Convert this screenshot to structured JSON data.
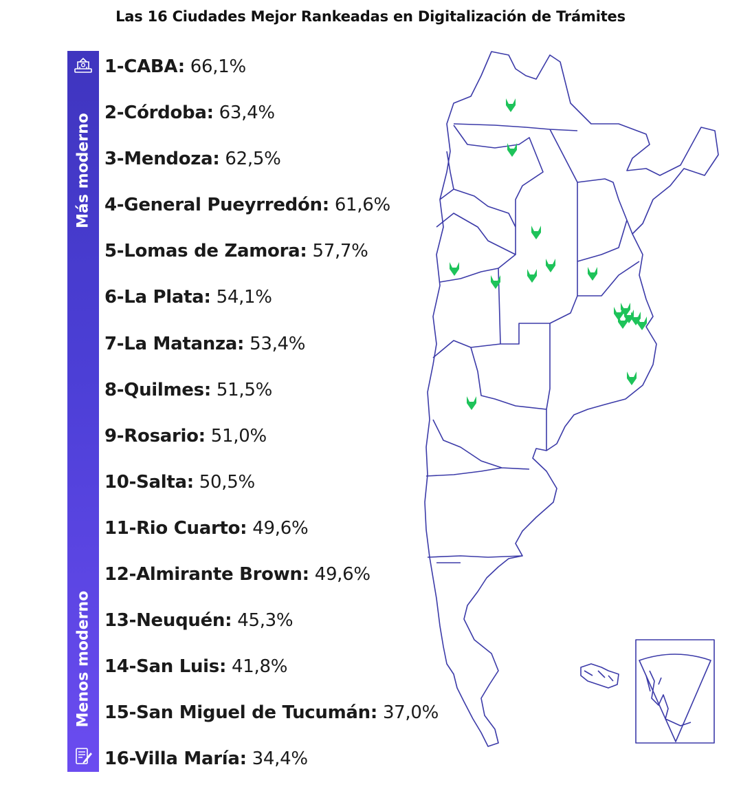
{
  "title": "Las 16 Ciudades Mejor Rankeadas en Digitalización de Trámites",
  "scale": {
    "top_label": "Más moderno",
    "bottom_label": "Menos moderno",
    "top_icon": "digital-building-icon",
    "bottom_icon": "paper-form-icon"
  },
  "ranking": [
    {
      "name": "1-CABA:",
      "value": "66,1%"
    },
    {
      "name": "2-Córdoba:",
      "value": "63,4%"
    },
    {
      "name": "3-Mendoza:",
      "value": "62,5%"
    },
    {
      "name": "4-General Pueyrredón:",
      "value": "61,6%"
    },
    {
      "name": "5-Lomas de Zamora:",
      "value": "57,7%"
    },
    {
      "name": "6-La Plata:",
      "value": "54,1%"
    },
    {
      "name": "7-La Matanza:",
      "value": "53,4%"
    },
    {
      "name": "8-Quilmes:",
      "value": "51,5%"
    },
    {
      "name": "9-Rosario:",
      "value": "51,0%"
    },
    {
      "name": "10-Salta:",
      "value": "50,5%"
    },
    {
      "name": "11-Rio Cuarto:",
      "value": "49,6%"
    },
    {
      "name": "12-Almirante Brown:",
      "value": "49,6%"
    },
    {
      "name": "13-Neuquén:",
      "value": "45,3%"
    },
    {
      "name": "14-San Luis:",
      "value": "41,8%"
    },
    {
      "name": "15-San Miguel de Tucumán:",
      "value": "37,0%"
    },
    {
      "name": "16-Villa María:",
      "value": "34,4%"
    }
  ],
  "map": {
    "outline_color": "#3b3aa8",
    "marker_color": "#1ec35a",
    "marker_icon": "map-pin-icon"
  }
}
